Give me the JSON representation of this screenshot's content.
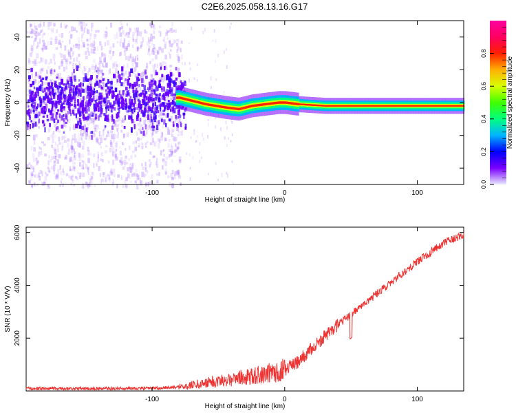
{
  "title": "C2E6.2025.058.13.16.G17",
  "chart_data": [
    {
      "type": "heatmap",
      "name": "spectrogram",
      "xlabel": "Height of straight line (km)",
      "ylabel": "Frequency (Hz)",
      "xlim": [
        -195,
        135
      ],
      "ylim": [
        -50,
        50
      ],
      "xticks": [
        -100,
        0,
        100
      ],
      "yticks": [
        -40,
        -20,
        0,
        20,
        40
      ],
      "colorbar": {
        "label": "Normalized spectral amplitude",
        "range": [
          0,
          1
        ],
        "ticks": [
          "0.0",
          "0.2",
          "0.4",
          "0.6",
          "0.8"
        ],
        "colors": [
          "#e8e8ff",
          "#7a00ff",
          "#0000ff",
          "#00b4ff",
          "#00ff80",
          "#40ff00",
          "#d8ff00",
          "#ffb000",
          "#ff2000",
          "#ff0060",
          "#ff00a0"
        ]
      },
      "ridge_frequency": [
        {
          "x": -195,
          "y": 2
        },
        {
          "x": -150,
          "y": 3
        },
        {
          "x": -100,
          "y": 2
        },
        {
          "x": -80,
          "y": 3
        },
        {
          "x": -70,
          "y": 1
        },
        {
          "x": -60,
          "y": -1
        },
        {
          "x": -45,
          "y": -3
        },
        {
          "x": -35,
          "y": -4
        },
        {
          "x": -25,
          "y": -2
        },
        {
          "x": -15,
          "y": -1
        },
        {
          "x": -5,
          "y": 0
        },
        {
          "x": 0,
          "y": 0
        },
        {
          "x": 10,
          "y": -1
        },
        {
          "x": 30,
          "y": -2
        },
        {
          "x": 60,
          "y": -2
        },
        {
          "x": 100,
          "y": -2
        },
        {
          "x": 135,
          "y": -2
        }
      ]
    },
    {
      "type": "line",
      "name": "snr",
      "xlabel": "Height of straight line (km)",
      "ylabel": "SNR (10 * V/V)",
      "xlim": [
        -195,
        135
      ],
      "ylim": [
        0,
        6200
      ],
      "xticks": [
        -100,
        0,
        100
      ],
      "yticks": [
        2000,
        4000,
        6000
      ],
      "color": "#ee3333",
      "trend": [
        {
          "x": -195,
          "y": 100
        },
        {
          "x": -150,
          "y": 90
        },
        {
          "x": -100,
          "y": 100
        },
        {
          "x": -80,
          "y": 150
        },
        {
          "x": -60,
          "y": 300
        },
        {
          "x": -40,
          "y": 450
        },
        {
          "x": -20,
          "y": 600
        },
        {
          "x": 0,
          "y": 800
        },
        {
          "x": 10,
          "y": 1100
        },
        {
          "x": 20,
          "y": 1600
        },
        {
          "x": 40,
          "y": 2500
        },
        {
          "x": 50,
          "y": 2900
        },
        {
          "x": 60,
          "y": 3300
        },
        {
          "x": 80,
          "y": 4100
        },
        {
          "x": 100,
          "y": 4900
        },
        {
          "x": 120,
          "y": 5600
        },
        {
          "x": 135,
          "y": 5900
        }
      ]
    }
  ]
}
